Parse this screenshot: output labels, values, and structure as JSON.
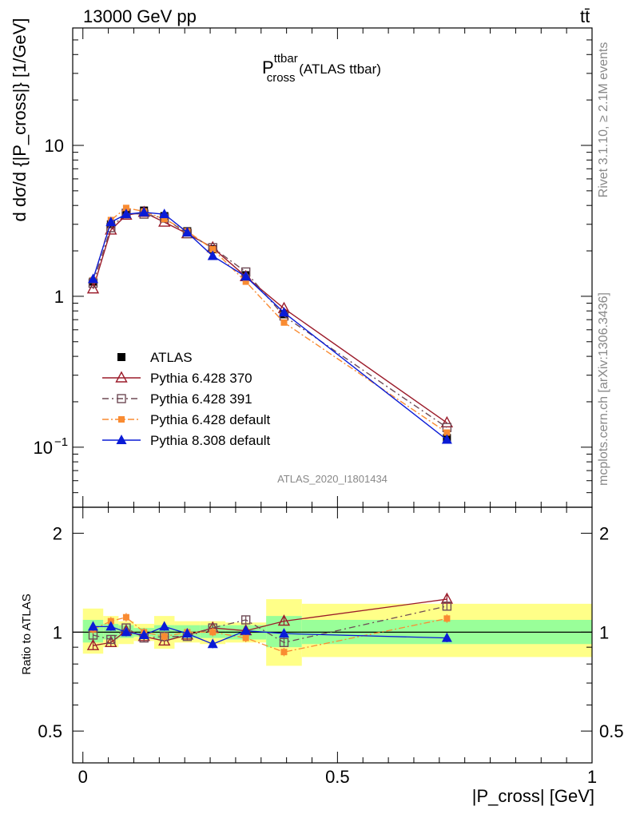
{
  "header": {
    "energy_label": "13000 GeV pp",
    "process_label": "tt̄"
  },
  "side_labels": {
    "rivet": "Rivet 3.1.10, ≥ 2.1M events",
    "mcplots": "mcplots.cern.ch [arXiv:1306.3436]"
  },
  "analysis_id": "ATLAS_2020_I1801434",
  "plot_title": {
    "main": "P",
    "sup": "ttbar",
    "sub": "cross",
    "suffix": " (ATLAS ttbar)"
  },
  "axis_labels": {
    "ylabel_main": "d dσ/d {|P_cross|} [1/GeV]",
    "ylabel_ratio": "Ratio to ATLAS",
    "xlabel": "|P_cross| [GeV]"
  },
  "colors": {
    "data": "#000000",
    "p370": "#9b1b2a",
    "p391": "#6e4a55",
    "pdef": "#f98b32",
    "p8": "#0a1bd6",
    "band_inner": "#99ff99",
    "band_outer": "#ffff88"
  },
  "chart_data": {
    "type": "line",
    "x": [
      0.02,
      0.055,
      0.085,
      0.12,
      0.16,
      0.205,
      0.255,
      0.32,
      0.395,
      0.715
    ],
    "main": {
      "ylim": [
        0.04,
        60
      ],
      "yscale": "log",
      "xlim": [
        -0.02,
        1.0
      ],
      "yticklabels": [
        "10^-1",
        "1",
        "10"
      ],
      "series": [
        {
          "name": "ATLAS",
          "key": "data",
          "values": [
            1.25,
            3.0,
            3.5,
            3.7,
            3.4,
            2.7,
            2.05,
            1.38,
            0.76,
            0.115
          ]
        },
        {
          "name": "Pythia 6.428 370",
          "key": "p370",
          "values": [
            1.12,
            2.75,
            3.45,
            3.6,
            3.1,
            2.6,
            2.1,
            1.35,
            0.83,
            0.145
          ]
        },
        {
          "name": "Pythia 6.428 391",
          "key": "p391",
          "values": [
            1.22,
            2.85,
            3.55,
            3.5,
            3.3,
            2.6,
            2.1,
            1.45,
            0.74,
            0.135
          ]
        },
        {
          "name": "Pythia 6.428 default",
          "key": "pdef",
          "values": [
            1.28,
            3.2,
            3.85,
            3.65,
            3.25,
            2.7,
            2.05,
            1.25,
            0.67,
            0.125
          ]
        },
        {
          "name": "Pythia 8.308 default",
          "key": "p8",
          "values": [
            1.3,
            3.1,
            3.5,
            3.6,
            3.5,
            2.65,
            1.85,
            1.35,
            0.78,
            0.112
          ]
        }
      ]
    },
    "ratio": {
      "ylim": [
        0.4,
        2.4
      ],
      "yscale": "log",
      "yticks": [
        0.5,
        1,
        2
      ],
      "yticklabels": [
        "0.5",
        "1",
        "2"
      ],
      "xticks": [
        0,
        0.5,
        1
      ],
      "xticklabels": [
        "0",
        "0.5",
        "1"
      ],
      "bins": [
        [
          0.0,
          0.04
        ],
        [
          0.04,
          0.07
        ],
        [
          0.07,
          0.1
        ],
        [
          0.1,
          0.14
        ],
        [
          0.14,
          0.18
        ],
        [
          0.18,
          0.23
        ],
        [
          0.23,
          0.28
        ],
        [
          0.28,
          0.36
        ],
        [
          0.36,
          0.43
        ],
        [
          0.43,
          1.0
        ]
      ],
      "band_inner": [
        [
          0.93,
          1.09
        ],
        [
          0.95,
          1.06
        ],
        [
          0.96,
          1.05
        ],
        [
          0.97,
          1.03
        ],
        [
          0.95,
          1.05
        ],
        [
          0.96,
          1.05
        ],
        [
          0.96,
          1.05
        ],
        [
          0.95,
          1.05
        ],
        [
          0.9,
          1.12
        ],
        [
          0.92,
          1.09
        ]
      ],
      "band_outer": [
        [
          0.86,
          1.18
        ],
        [
          0.9,
          1.12
        ],
        [
          0.92,
          1.08
        ],
        [
          0.94,
          1.06
        ],
        [
          0.89,
          1.12
        ],
        [
          0.93,
          1.08
        ],
        [
          0.92,
          1.08
        ],
        [
          0.93,
          1.07
        ],
        [
          0.79,
          1.26
        ],
        [
          0.84,
          1.22
        ]
      ],
      "series": [
        {
          "key": "p370",
          "values": [
            0.91,
            0.93,
            1.01,
            0.97,
            0.94,
            0.98,
            1.03,
            1.01,
            1.08,
            1.26
          ]
        },
        {
          "key": "p391",
          "values": [
            0.98,
            0.95,
            1.03,
            0.96,
            0.97,
            0.97,
            1.03,
            1.09,
            0.93,
            1.2
          ]
        },
        {
          "key": "pdef",
          "values": [
            1.02,
            1.08,
            1.11,
            1.0,
            0.97,
            1.0,
            1.0,
            0.96,
            0.87,
            1.1
          ]
        },
        {
          "key": "p8",
          "values": [
            1.04,
            1.04,
            1.0,
            0.98,
            1.04,
            0.99,
            0.92,
            1.01,
            0.99,
            0.96
          ]
        }
      ]
    },
    "legend_position": "lower-left"
  }
}
